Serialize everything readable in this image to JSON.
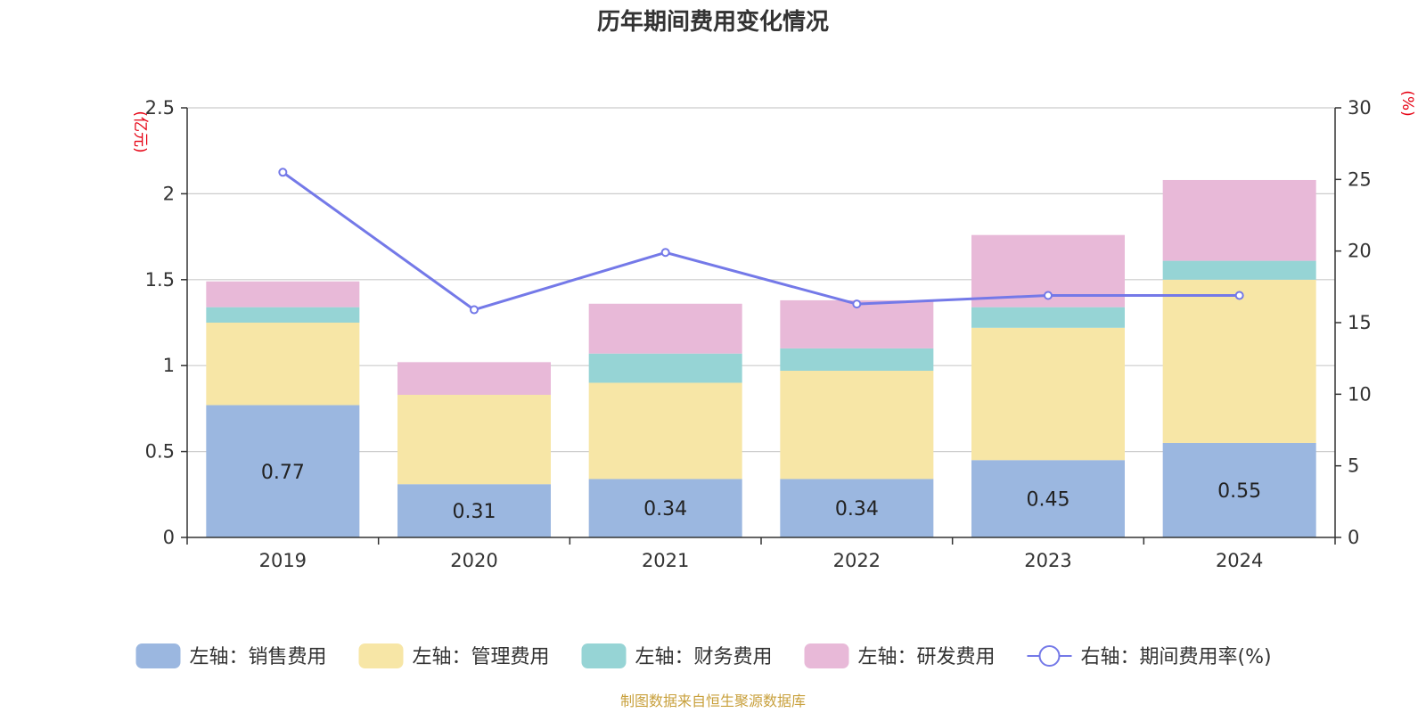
{
  "chart_data": {
    "type": "bar",
    "title": "历年期间费用变化情况",
    "categories": [
      "2019",
      "2020",
      "2021",
      "2022",
      "2023",
      "2024"
    ],
    "y_left": {
      "unit_label": "(亿元)",
      "ylim": [
        0,
        2.5
      ],
      "ticks": [
        "0",
        "0.5",
        "1",
        "1.5",
        "2",
        "2.5"
      ],
      "tick_values": [
        0,
        0.5,
        1,
        1.5,
        2,
        2.5
      ]
    },
    "y_right": {
      "unit_label": "(%)",
      "ylim": [
        0,
        30
      ],
      "ticks": [
        "0",
        "5",
        "10",
        "15",
        "20",
        "25",
        "30"
      ],
      "tick_values": [
        0,
        5,
        10,
        15,
        20,
        25,
        30
      ]
    },
    "grid": true,
    "legend_position": "bottom",
    "series": [
      {
        "name": "左轴：销售费用",
        "axis": "left",
        "stack": true,
        "color": "#9bb7e0",
        "values": [
          0.77,
          0.31,
          0.34,
          0.34,
          0.45,
          0.55
        ],
        "labels": [
          "0.77",
          "0.31",
          "0.34",
          "0.34",
          "0.45",
          "0.55"
        ]
      },
      {
        "name": "左轴：管理费用",
        "axis": "left",
        "stack": true,
        "color": "#f7e6a6",
        "values": [
          0.48,
          0.52,
          0.56,
          0.63,
          0.77,
          0.95
        ]
      },
      {
        "name": "左轴：财务费用",
        "axis": "left",
        "stack": true,
        "color": "#96d4d5",
        "values": [
          0.09,
          0.0,
          0.17,
          0.13,
          0.12,
          0.11
        ]
      },
      {
        "name": "左轴：研发费用",
        "axis": "left",
        "stack": true,
        "color": "#e8b9d8",
        "values": [
          0.15,
          0.19,
          0.29,
          0.28,
          0.42,
          0.47
        ]
      },
      {
        "name": "右轴：期间费用率(%)",
        "axis": "right",
        "type": "line",
        "color": "#7479e8",
        "values": [
          25.5,
          15.9,
          19.9,
          16.3,
          16.9,
          16.9
        ]
      }
    ]
  },
  "source_note": "制图数据来自恒生聚源数据库"
}
